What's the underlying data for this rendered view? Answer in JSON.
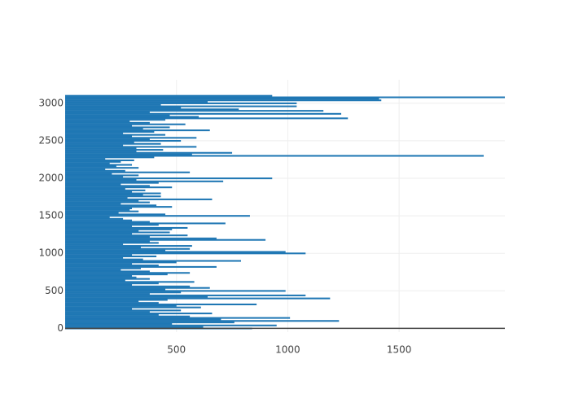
{
  "chart_data": {
    "type": "bar",
    "orientation": "horizontal",
    "color": "#1f77b4",
    "grid": true,
    "xlim": [
      0,
      1975
    ],
    "xticks": [
      500,
      1000,
      1500
    ],
    "ylim": [
      -50,
      3150
    ],
    "yticks": [
      0,
      500,
      1000,
      1500,
      2000,
      2500,
      3000
    ],
    "y": [
      0,
      20,
      40,
      60,
      80,
      100,
      120,
      140,
      160,
      180,
      200,
      220,
      240,
      260,
      280,
      300,
      320,
      340,
      360,
      380,
      400,
      420,
      440,
      460,
      480,
      500,
      520,
      540,
      560,
      580,
      600,
      620,
      640,
      660,
      680,
      700,
      720,
      740,
      760,
      780,
      800,
      820,
      840,
      860,
      880,
      900,
      920,
      940,
      960,
      980,
      1000,
      1020,
      1040,
      1060,
      1080,
      1100,
      1120,
      1140,
      1160,
      1180,
      1200,
      1220,
      1240,
      1260,
      1280,
      1300,
      1320,
      1340,
      1360,
      1380,
      1400,
      1420,
      1440,
      1460,
      1480,
      1500,
      1520,
      1540,
      1560,
      1580,
      1600,
      1620,
      1640,
      1660,
      1680,
      1700,
      1720,
      1740,
      1760,
      1780,
      1800,
      1820,
      1840,
      1860,
      1880,
      1900,
      1920,
      1940,
      1960,
      1980,
      2000,
      2020,
      2040,
      2060,
      2080,
      2100,
      2120,
      2140,
      2160,
      2180,
      2200,
      2220,
      2240,
      2260,
      2280,
      2300,
      2320,
      2340,
      2360,
      2380,
      2400,
      2420,
      2440,
      2460,
      2480,
      2500,
      2520,
      2540,
      2560,
      2580,
      2600,
      2620,
      2640,
      2660,
      2680,
      2700,
      2720,
      2740,
      2760,
      2780,
      2800,
      2820,
      2840,
      2860,
      2880,
      2900,
      2920,
      2940,
      2960,
      2980,
      3000,
      3020,
      3040,
      3060,
      3080,
      3100
    ],
    "values": [
      840,
      620,
      950,
      480,
      760,
      1230,
      700,
      1010,
      560,
      420,
      660,
      380,
      520,
      300,
      610,
      500,
      860,
      420,
      330,
      460,
      1190,
      640,
      1080,
      380,
      520,
      990,
      450,
      650,
      560,
      300,
      420,
      580,
      270,
      380,
      320,
      300,
      460,
      560,
      380,
      250,
      340,
      680,
      420,
      300,
      500,
      790,
      350,
      260,
      410,
      300,
      1080,
      990,
      450,
      560,
      340,
      570,
      260,
      420,
      380,
      900,
      680,
      380,
      550,
      300,
      470,
      330,
      480,
      550,
      300,
      420,
      720,
      380,
      300,
      260,
      200,
      830,
      450,
      240,
      330,
      290,
      300,
      480,
      410,
      250,
      380,
      330,
      660,
      280,
      430,
      350,
      430,
      300,
      360,
      270,
      480,
      380,
      250,
      420,
      710,
      320,
      930,
      260,
      330,
      210,
      560,
      270,
      180,
      330,
      230,
      300,
      200,
      250,
      310,
      180,
      400,
      1880,
      570,
      750,
      320,
      440,
      320,
      590,
      260,
      430,
      310,
      520,
      380,
      590,
      300,
      450,
      260,
      400,
      650,
      350,
      470,
      300,
      540,
      380,
      290,
      450,
      1270,
      600,
      470,
      1240,
      380,
      1160,
      780,
      520,
      1040,
      430,
      1040,
      640,
      1420,
      1410,
      1975,
      930
    ]
  }
}
